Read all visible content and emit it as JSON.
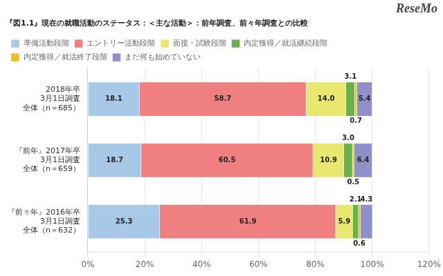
{
  "chart_data": {
    "type": "bar",
    "orientation": "horizontal",
    "stacked": true,
    "title": "『図1.1』現在の就職活動のステータス：＜主な活動＞：前年調査、前々年調査との比較",
    "annotations": [
      {
        "text": "ReseMo"
      }
    ],
    "categories": [
      [
        "2018年卒",
        "3月1日調査",
        "全体（n＝685）"
      ],
      [
        "『前年』2017年卒",
        "3月1日調査",
        "全体（n＝659）"
      ],
      [
        "『前々年』2016年卒",
        "3月1日調査",
        "全体（n＝632）"
      ]
    ],
    "series": [
      {
        "name": "準備活動段階",
        "color": "#a8c8e8",
        "values": [
          18.1,
          18.7,
          25.3
        ],
        "value_labels": [
          "18.1",
          "18.7",
          "25.3"
        ]
      },
      {
        "name": "エントリー活動段階",
        "color": "#f08080",
        "values": [
          58.7,
          60.5,
          61.9
        ],
        "value_labels": [
          "58.7",
          "60.5",
          "61.9"
        ]
      },
      {
        "name": "面接・試験段階",
        "color": "#e8e870",
        "values": [
          14.0,
          10.9,
          5.9
        ],
        "value_labels": [
          "14.0",
          "10.9",
          "5.9"
        ]
      },
      {
        "name": "内定獲得／就活継続段階",
        "color": "#6ab04c",
        "values": [
          3.1,
          3.0,
          2.1
        ],
        "value_labels": [
          "3.1",
          "3.0",
          "2.1"
        ]
      },
      {
        "name": "内定獲得／就活終了段階",
        "color": "#e8c020",
        "values": [
          0.7,
          0.5,
          0.6
        ],
        "value_labels": [
          "0.7",
          "0.5",
          "0.6"
        ]
      },
      {
        "name": "まだ何も始めていない",
        "color": "#9090c8",
        "values": [
          5.4,
          6.4,
          4.3
        ],
        "value_labels": [
          "5.4",
          "6.4",
          "4.3"
        ]
      }
    ],
    "xlim": [
      0,
      120
    ],
    "xticks": [
      {
        "value": 0,
        "label": "0%"
      },
      {
        "value": 20,
        "label": "20%"
      },
      {
        "value": 40,
        "label": "40%"
      },
      {
        "value": 60,
        "label": "60%"
      },
      {
        "value": 80,
        "label": "80%"
      },
      {
        "value": 100,
        "label": "100%"
      },
      {
        "value": 120,
        "label": "120%"
      }
    ],
    "grid": true,
    "legend": "upper left",
    "data_labels": true
  }
}
